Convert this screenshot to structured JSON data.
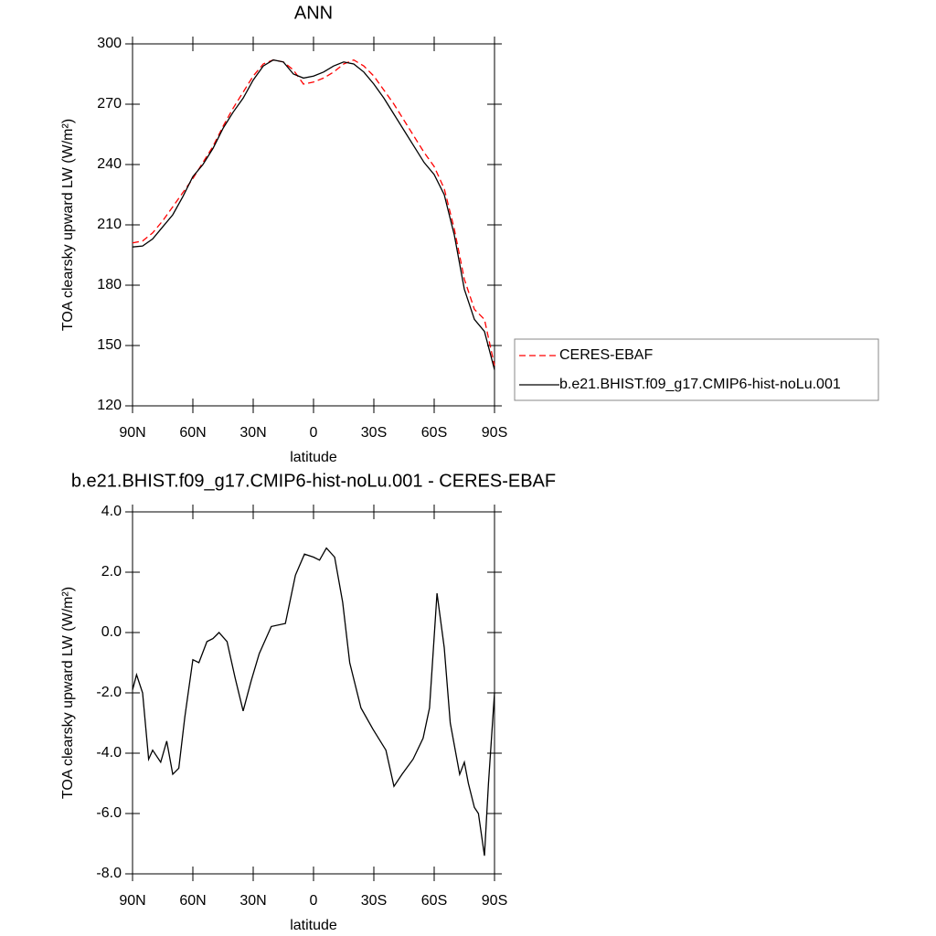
{
  "chart_data": [
    {
      "type": "line",
      "title": "ANN",
      "xlabel": "latitude",
      "ylabel": "TOA clearsky upward LW (W/m²)",
      "xlim": [
        90,
        -90
      ],
      "xticks": [
        {
          "value": 90,
          "label": "90N"
        },
        {
          "value": 60,
          "label": "60N"
        },
        {
          "value": 30,
          "label": "30N"
        },
        0,
        {
          "value": -30,
          "label": "30S"
        },
        {
          "value": -60,
          "label": "60S"
        },
        {
          "value": -90,
          "label": "90S"
        }
      ],
      "ylim": [
        120,
        300
      ],
      "yticks": [
        120,
        150,
        180,
        210,
        240,
        270,
        300
      ],
      "legend": "right",
      "x": [
        90,
        85,
        80,
        75,
        70,
        65,
        60,
        55,
        50,
        45,
        40,
        35,
        30,
        25,
        20,
        15,
        10,
        5,
        0,
        -5,
        -10,
        -15,
        -20,
        -25,
        -30,
        -35,
        -40,
        -45,
        -50,
        -55,
        -60,
        -65,
        -70,
        -75,
        -80,
        -85,
        -90
      ],
      "series": [
        {
          "name": "CERES-EBAF",
          "color": "#ff0000",
          "dashed": true,
          "values": [
            201,
            202,
            206,
            212,
            219,
            226,
            233,
            241,
            249,
            259,
            268,
            276,
            284,
            290,
            292,
            291,
            287,
            280,
            281,
            283,
            286,
            290,
            292,
            289,
            284,
            277,
            270,
            262,
            254,
            246,
            239,
            228,
            208,
            183,
            168,
            163,
            140
          ]
        },
        {
          "name": "b.e21.BHIST.f09_g17.CMIP6-hist-noLu.001",
          "color": "#000000",
          "dashed": false,
          "values": [
            199,
            199.5,
            203,
            209,
            215,
            224,
            234,
            240,
            248,
            258,
            266,
            273,
            282,
            289,
            292,
            291,
            285,
            283,
            284,
            286,
            289,
            291,
            290,
            286,
            280,
            273,
            265,
            257,
            249,
            241,
            235,
            225,
            205,
            178,
            163,
            157,
            138
          ]
        }
      ]
    },
    {
      "type": "line",
      "title": "b.e21.BHIST.f09_g17.CMIP6-hist-noLu.001 - CERES-EBAF",
      "xlabel": "latitude",
      "ylabel": "TOA clearsky upward LW (W/m²)",
      "xlim": [
        90,
        -90
      ],
      "xticks": [
        {
          "value": 90,
          "label": "90N"
        },
        {
          "value": 60,
          "label": "60N"
        },
        {
          "value": 30,
          "label": "30N"
        },
        0,
        {
          "value": -30,
          "label": "30S"
        },
        {
          "value": -60,
          "label": "60S"
        },
        {
          "value": -90,
          "label": "90S"
        }
      ],
      "ylim": [
        -8,
        4
      ],
      "yticks": [
        {
          "value": -8,
          "label": "-8.0"
        },
        {
          "value": -6,
          "label": "-6.0"
        },
        {
          "value": -4,
          "label": "-4.0"
        },
        {
          "value": -2,
          "label": "-2.0"
        },
        {
          "value": 0,
          "label": "0.0"
        },
        {
          "value": 2,
          "label": "2.0"
        },
        {
          "value": 4,
          "label": "4.0"
        }
      ],
      "x": [
        90,
        88,
        85,
        82,
        80,
        76,
        73,
        70,
        67,
        64,
        60,
        57,
        53,
        50,
        47,
        43,
        39,
        35,
        31,
        27,
        21,
        14,
        9,
        4.5,
        0,
        -3,
        -6.4,
        -10.5,
        -14.5,
        -18,
        -23.6,
        -29.5,
        -36,
        -40,
        -44,
        -49.5,
        -54.5,
        -57.7,
        -61.4,
        -65,
        -68,
        -72.7,
        -75,
        -77,
        -80,
        -82,
        -85,
        -87,
        -90
      ],
      "series": [
        {
          "color": "#000000",
          "dashed": false,
          "values": [
            -1.9,
            -1.4,
            -2.0,
            -4.2,
            -3.9,
            -4.3,
            -3.6,
            -4.7,
            -4.5,
            -2.8,
            -0.9,
            -1.0,
            -0.3,
            -0.2,
            0.0,
            -0.3,
            -1.5,
            -2.6,
            -1.6,
            -0.7,
            0.2,
            0.3,
            1.9,
            2.6,
            2.5,
            2.4,
            2.8,
            2.5,
            1.0,
            -1.0,
            -2.5,
            -3.2,
            -3.9,
            -5.1,
            -4.7,
            -4.2,
            -3.5,
            -2.5,
            1.3,
            -0.5,
            -3.0,
            -4.7,
            -4.3,
            -5.0,
            -5.8,
            -6.0,
            -7.4,
            -5.0,
            -2.0
          ]
        }
      ]
    }
  ]
}
